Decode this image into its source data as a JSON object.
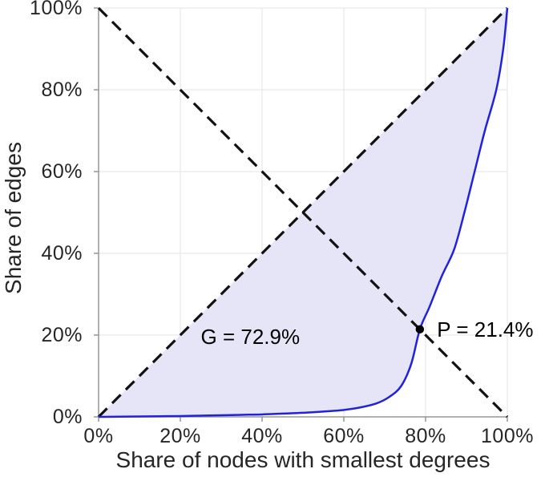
{
  "chart_data": {
    "type": "line",
    "title": "",
    "xlabel": "Share of nodes with smallest degrees",
    "ylabel": "Share of edges",
    "xlim": [
      0,
      1
    ],
    "ylim": [
      0,
      1
    ],
    "grid": true,
    "legend": "none",
    "x_ticks": {
      "values": [
        0,
        0.2,
        0.4,
        0.6,
        0.8,
        1
      ],
      "labels": [
        "0%",
        "20%",
        "40%",
        "60%",
        "80%",
        "100%"
      ]
    },
    "y_ticks": {
      "values": [
        0,
        0.2,
        0.4,
        0.6,
        0.8,
        1
      ],
      "labels": [
        "0%",
        "20%",
        "40%",
        "60%",
        "80%",
        "100%"
      ]
    },
    "series": [
      {
        "name": "lorenz-curve",
        "style": "solid",
        "color": "#2222dd",
        "width": 2.5,
        "x": [
          0,
          0.05,
          0.1,
          0.15,
          0.2,
          0.25,
          0.3,
          0.35,
          0.4,
          0.45,
          0.5,
          0.55,
          0.6,
          0.64,
          0.68,
          0.71,
          0.74,
          0.765,
          0.786,
          0.81,
          0.84,
          0.87,
          0.895,
          0.92,
          0.945,
          0.973,
          0.99,
          1
        ],
        "y": [
          0,
          0.0005,
          0.001,
          0.0015,
          0.002,
          0.003,
          0.004,
          0.005,
          0.006,
          0.008,
          0.01,
          0.013,
          0.017,
          0.023,
          0.033,
          0.048,
          0.075,
          0.13,
          0.214,
          0.27,
          0.345,
          0.41,
          0.5,
          0.6,
          0.7,
          0.8,
          0.9,
          1
        ]
      },
      {
        "name": "equality-diagonal",
        "style": "dashed",
        "color": "#111111",
        "width": 3.2,
        "x": [
          0,
          1
        ],
        "y": [
          0,
          1
        ]
      },
      {
        "name": "anti-diagonal",
        "style": "dashed",
        "color": "#111111",
        "width": 3.2,
        "x": [
          0,
          1
        ],
        "y": [
          1,
          0
        ]
      }
    ],
    "fill_between": {
      "upper": "equality-diagonal",
      "lower": "lorenz-curve",
      "color": "#e5e5f7"
    },
    "marker": {
      "x": 0.786,
      "y": 0.214,
      "radius": 5.2,
      "color": "#000000"
    },
    "annotations": [
      {
        "id": "gini",
        "text": "G = 72.9%",
        "x": 0.25,
        "y": 0.197
      },
      {
        "id": "p",
        "text": "P = 21.4%",
        "x": 0.828,
        "y": 0.214
      }
    ],
    "gini_percent": 72.9,
    "p_percent": 21.4,
    "colors": {
      "grid": "#e3e3e3",
      "axis": "#969696",
      "text": "#262626",
      "annotation_text": "#000000",
      "background": "#ffffff"
    }
  }
}
